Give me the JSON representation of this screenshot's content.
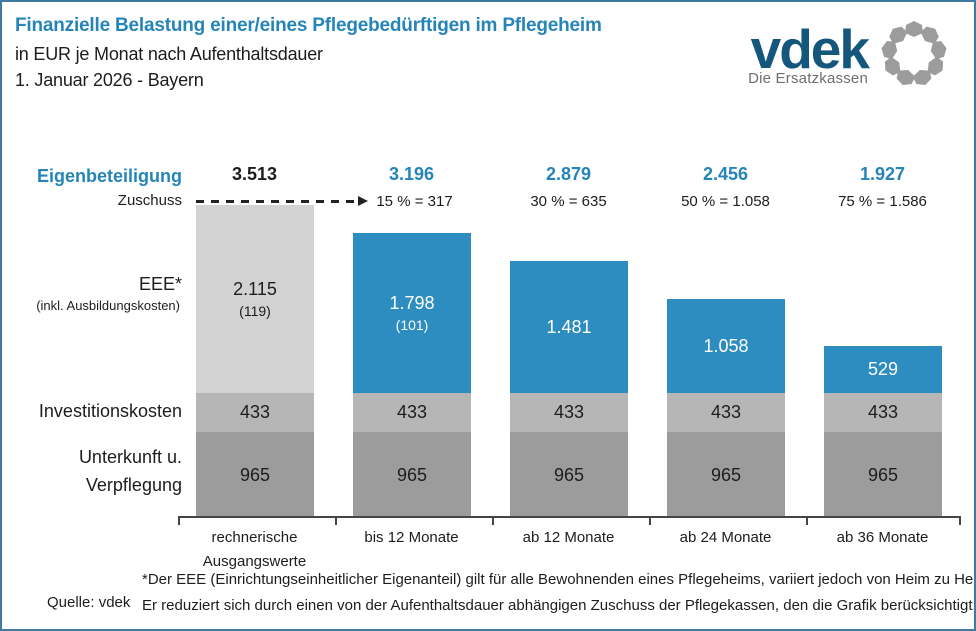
{
  "header": {
    "title_line1": "Finanzielle Belastung einer/eines Pflegebedürftigen im Pflegeheim",
    "title_line2": "in EUR je Monat nach Aufenthaltsdauer",
    "title_line3": "1. Januar 2026 - Bayern"
  },
  "logo": {
    "brand": "vdek",
    "tagline": "Die Ersatzkassen"
  },
  "left_labels": {
    "eigenbeteiligung": "Eigenbeteiligung",
    "zuschuss": "Zuschuss",
    "eee": "EEE*",
    "eee_sub": "(inkl. Ausbildungskosten)",
    "investitionskosten": "Investitionskosten",
    "unterkunft_line1": "Unterkunft u.",
    "unterkunft_line2": "Verpflegung"
  },
  "bars": [
    {
      "category_line1": "rechnerische",
      "category_line2": "Ausgangswerte",
      "total": "3.513",
      "subsidy": "",
      "eee_label": "2.115",
      "eee_sub_label": "(119)",
      "invest_label": "433",
      "unterkunft_label": "965"
    },
    {
      "category_line1": "bis 12 Monate",
      "category_line2": "",
      "total": "3.196",
      "subsidy": "15 % = 317",
      "eee_label": "1.798",
      "eee_sub_label": "(101)",
      "invest_label": "433",
      "unterkunft_label": "965"
    },
    {
      "category_line1": "ab 12 Monate",
      "category_line2": "",
      "total": "2.879",
      "subsidy": "30 % = 635",
      "eee_label": "1.481",
      "eee_sub_label": "",
      "invest_label": "433",
      "unterkunft_label": "965"
    },
    {
      "category_line1": "ab 24 Monate",
      "category_line2": "",
      "total": "2.456",
      "subsidy": "50 % = 1.058",
      "eee_label": "1.058",
      "eee_sub_label": "",
      "invest_label": "433",
      "unterkunft_label": "965"
    },
    {
      "category_line1": "ab 36 Monate",
      "category_line2": "",
      "total": "1.927",
      "subsidy": "75 % = 1.586",
      "eee_label": "529",
      "eee_sub_label": "",
      "invest_label": "433",
      "unterkunft_label": "965"
    }
  ],
  "chart_data": {
    "type": "bar",
    "stacked": true,
    "title": "Finanzielle Belastung einer/eines Pflegebedürftigen im Pflegeheim",
    "subtitle": "in EUR je Monat nach Aufenthaltsdauer, 1. Januar 2026 - Bayern",
    "unit": "EUR je Monat",
    "categories": [
      "rechnerische Ausgangswerte",
      "bis 12 Monate",
      "ab 12 Monate",
      "ab 24 Monate",
      "ab 36 Monate"
    ],
    "series": [
      {
        "name": "EEE* (inkl. Ausbildungskosten)",
        "values": [
          2115,
          1798,
          1481,
          1058,
          529
        ],
        "ausbildungskosten_anteil": [
          119,
          101,
          null,
          null,
          null
        ]
      },
      {
        "name": "Investitionskosten",
        "values": [
          433,
          433,
          433,
          433,
          433
        ]
      },
      {
        "name": "Unterkunft u. Verpflegung",
        "values": [
          965,
          965,
          965,
          965,
          965
        ]
      }
    ],
    "eigenbeteiligung_totals": [
      3513,
      3196,
      2879,
      2456,
      1927
    ],
    "zuschuss_percent": [
      0,
      15,
      30,
      50,
      75
    ],
    "zuschuss_values": [
      0,
      317,
      635,
      1058,
      1586
    ],
    "ylim": [
      0,
      3600
    ],
    "grid": false,
    "legend_position": "left-row-labels"
  },
  "footer": {
    "source": "Quelle: vdek",
    "footnote_line1": "*Der EEE (Einrichtungseinheitlicher Eigenanteil) gilt für alle Bewohnenden eines Pflegeheims, variiert jedoch von Heim zu Heim.",
    "footnote_line2": "Er reduziert sich durch einen von der Aufenthaltsdauer abhängigen Zuschuss der Pflegekassen, den die Grafik berücksichtigt."
  },
  "colors": {
    "accent_blue": "#2585b8",
    "bar_blue": "#2d8dc0",
    "light_gray": "#d2d2d2",
    "mid_gray": "#b6b6b6",
    "dark_gray": "#9c9c9c",
    "logo_navy": "#15567d",
    "logo_dot_gray": "#9c9c9c",
    "border_blue": "#3d7ba0"
  }
}
